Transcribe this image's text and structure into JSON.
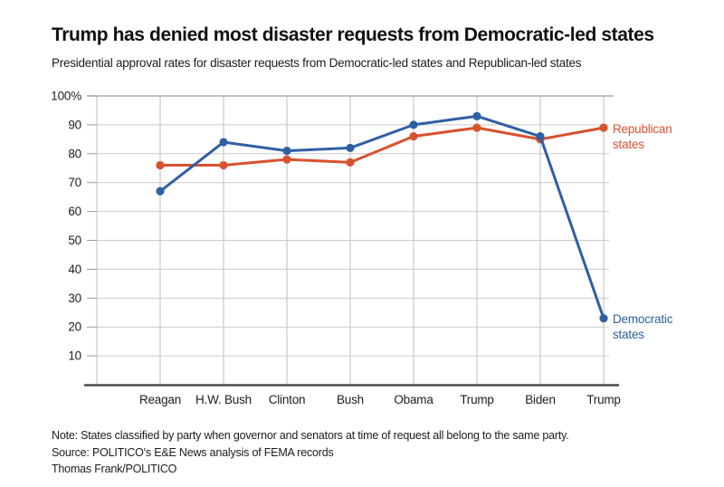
{
  "chart_data": {
    "type": "line",
    "title": "Trump has denied most disaster requests from Democratic-led states",
    "subtitle": "Presidential approval rates for disaster requests from Democratic-led states and Republican-led states",
    "categories": [
      "Reagan",
      "H.W. Bush",
      "Clinton",
      "Bush",
      "Obama",
      "Trump",
      "Biden",
      "Trump"
    ],
    "series": [
      {
        "name": "Democratic states",
        "color": "#2f5fa3",
        "values": [
          67,
          84,
          81,
          82,
          90,
          93,
          86,
          23
        ]
      },
      {
        "name": "Republican states",
        "color": "#d9512e",
        "values": [
          76,
          76,
          78,
          77,
          86,
          89,
          85,
          89
        ]
      }
    ],
    "y_tick_labels": [
      "100%",
      "90",
      "80",
      "70",
      "60",
      "50",
      "40",
      "30",
      "20",
      "10"
    ],
    "y_tick_values": [
      100,
      90,
      80,
      70,
      60,
      50,
      40,
      30,
      20,
      10
    ],
    "ylim": [
      0,
      100
    ],
    "grid": true,
    "legend_position": "right-of-last-point",
    "note": "Note: States classified by party when governor and senators at time of request all belong to the same party.",
    "source": "Source: POLITICO's E&E News analysis of FEMA records",
    "credit": "Thomas Frank/POLITICO"
  },
  "colors": {
    "democratic_line": "#2f5fa3",
    "republican_line": "#d9512e",
    "horizontal_gridline": "#c9c9c9",
    "top_gridline": "#ababab",
    "vertical_gridline": "#bdbdbd",
    "axis_line": "#3a3a3a",
    "tick_mark": "#9a9a9a",
    "axis_label_text": "#1d1d1d"
  }
}
